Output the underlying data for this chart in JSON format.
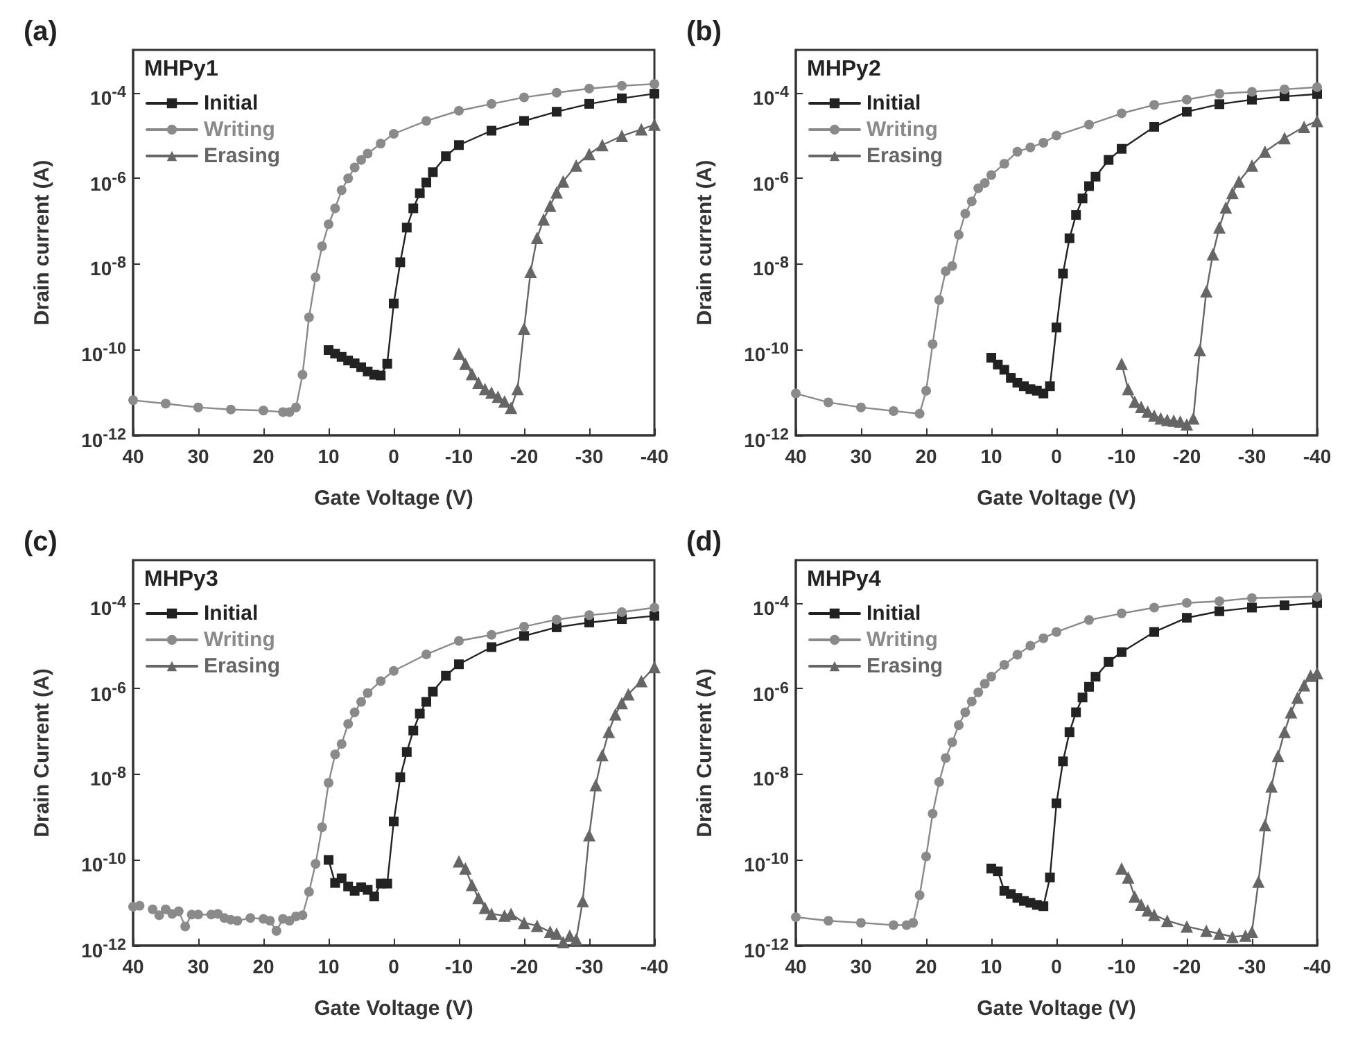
{
  "chart_data": [
    {
      "type": "line",
      "title": "(a)",
      "legend_title": "MHPy1",
      "xlabel": "Gate Voltage (V)",
      "ylabel": "Drain current (A)",
      "xlim": [
        40,
        -40
      ],
      "xticks": [
        40,
        30,
        20,
        10,
        0,
        -10,
        -20,
        -30,
        -40
      ],
      "ylim": [
        1e-12,
        0.001
      ],
      "yticks": [
        {
          "value": 1e-12,
          "label": "10$^{-12}$"
        },
        {
          "value": 1e-10,
          "label": "10$^{-10}$"
        },
        {
          "value": 1e-08,
          "label": "10$^{-8}$"
        },
        {
          "value": 1e-06,
          "label": "10$^{-6}$"
        },
        {
          "value": 0.0001,
          "label": "10$^{-4}$"
        }
      ],
      "log": "y",
      "grid": false,
      "legend": "top left",
      "series": [
        {
          "name": "Initial",
          "color": "#222222",
          "marker": "square",
          "x": [
            10,
            9,
            8,
            7,
            6,
            5,
            4,
            3,
            2,
            1,
            0,
            -1,
            -2,
            -3,
            -4,
            -5,
            -6,
            -8,
            -10,
            -15,
            -20,
            -25,
            -30,
            -35,
            -40
          ],
          "values": [
            9.8e-11,
            8.1e-11,
            6.8e-11,
            5.6e-11,
            4.8e-11,
            3.9e-11,
            3.1e-11,
            2.6e-11,
            2.5e-11,
            4.7e-11,
            1.2e-09,
            1.1e-08,
            7.1e-08,
            2e-07,
            4.5e-07,
            8e-07,
            1.4e-06,
            3.3e-06,
            6e-06,
            1.3e-05,
            2.2e-05,
            3.6e-05,
            5.5e-05,
            7.4e-05,
            9.5e-05
          ]
        },
        {
          "name": "Writing",
          "color": "#8a8a8a",
          "marker": "circle",
          "x": [
            40,
            35,
            30,
            25,
            20,
            17,
            16,
            15,
            14,
            13,
            12,
            11,
            10,
            9,
            8,
            7,
            6,
            5,
            4,
            2,
            0,
            -5,
            -10,
            -15,
            -20,
            -25,
            -30,
            -35,
            -40
          ],
          "values": [
            6.6e-12,
            5.5e-12,
            4.5e-12,
            4e-12,
            3.8e-12,
            3.5e-12,
            3.5e-12,
            4.5e-12,
            2.6e-11,
            5.7e-10,
            4.9e-09,
            2.6e-08,
            8.5e-08,
            2e-07,
            5.3e-07,
            1e-06,
            1.8e-06,
            2.7e-06,
            3.8e-06,
            6.5e-06,
            1.1e-05,
            2.2e-05,
            3.8e-05,
            5.5e-05,
            7.8e-05,
            0.0001,
            0.000125,
            0.000145,
            0.00016
          ]
        },
        {
          "name": "Erasing",
          "color": "#666666",
          "marker": "triangle",
          "x": [
            -10,
            -11,
            -12,
            -13,
            -14,
            -15,
            -16,
            -17,
            -18,
            -19,
            -20,
            -21,
            -22,
            -23,
            -24,
            -25,
            -26,
            -28,
            -30,
            -32,
            -35,
            -38,
            -40
          ],
          "values": [
            8.1e-11,
            4.7e-11,
            2.7e-11,
            1.7e-11,
            1.2e-11,
            1e-11,
            8e-12,
            6.2e-12,
            4.4e-12,
            1.2e-11,
            3.1e-10,
            6.6e-09,
            4.1e-08,
            1.1e-07,
            2.3e-07,
            4.7e-07,
            8.5e-07,
            2e-06,
            3.7e-06,
            6e-06,
            9.8e-06,
            1.4e-05,
            1.8e-05
          ]
        }
      ]
    },
    {
      "type": "line",
      "title": "(b)",
      "legend_title": "MHPy2",
      "xlabel": "Gate Voltage (V)",
      "ylabel": "Drain current (A)",
      "xlim": [
        40,
        -40
      ],
      "xticks": [
        40,
        30,
        20,
        10,
        0,
        -10,
        -20,
        -30,
        -40
      ],
      "ylim": [
        1e-12,
        0.001
      ],
      "yticks": [
        {
          "value": 1e-12,
          "label": "10$^{-12}$"
        },
        {
          "value": 1e-10,
          "label": "10$^{-10}$"
        },
        {
          "value": 1e-08,
          "label": "10$^{-8}$"
        },
        {
          "value": 1e-06,
          "label": "10$^{-6}$"
        },
        {
          "value": 0.0001,
          "label": "10$^{-4}$"
        }
      ],
      "log": "y",
      "grid": false,
      "legend": "top left",
      "series": [
        {
          "name": "Initial",
          "color": "#222222",
          "marker": "square",
          "x": [
            10,
            9,
            8,
            7,
            6,
            5,
            4,
            3,
            2,
            1,
            0,
            -1,
            -2,
            -3,
            -4,
            -5,
            -6,
            -8,
            -10,
            -15,
            -20,
            -25,
            -30,
            -35,
            -40
          ],
          "values": [
            6.5e-11,
            4.5e-11,
            3.4e-11,
            2.2e-11,
            1.7e-11,
            1.4e-11,
            1.2e-11,
            1.1e-11,
            9.5e-12,
            1.4e-11,
            3.3e-10,
            6e-09,
            4e-08,
            1.4e-07,
            3.4e-07,
            6.6e-07,
            1.1e-06,
            2.7e-06,
            4.9e-06,
            1.6e-05,
            3.6e-05,
            5.4e-05,
            6.9e-05,
            8.2e-05,
            9.3e-05
          ]
        },
        {
          "name": "Writing",
          "color": "#8a8a8a",
          "marker": "circle",
          "x": [
            40,
            35,
            30,
            25,
            21,
            20,
            19,
            18,
            17,
            16,
            15,
            14,
            13,
            12,
            11,
            10,
            8,
            6,
            4,
            2,
            0,
            -5,
            -10,
            -15,
            -20,
            -25,
            -30,
            -35,
            -40
          ],
          "values": [
            9.5e-12,
            5.9e-12,
            4.5e-12,
            3.7e-12,
            3.2e-12,
            1.1e-11,
            1.35e-10,
            1.45e-09,
            6.8e-09,
            9e-09,
            4.8e-08,
            1.5e-07,
            2.9e-07,
            5.9e-07,
            7.8e-07,
            1.2e-06,
            2.2e-06,
            4.2e-06,
            5.3e-06,
            6.8e-06,
            1e-05,
            1.8e-05,
            3.3e-05,
            5.2e-05,
            6.9e-05,
            9.5e-05,
            0.000105,
            0.00012,
            0.000135
          ]
        },
        {
          "name": "Erasing",
          "color": "#666666",
          "marker": "triangle",
          "x": [
            -10,
            -11,
            -12,
            -13,
            -14,
            -15,
            -16,
            -17,
            -18,
            -19,
            -20,
            -21,
            -22,
            -23,
            -24,
            -25,
            -26,
            -27,
            -28,
            -30,
            -32,
            -35,
            -38,
            -40
          ],
          "values": [
            4.7e-11,
            1.2e-11,
            6.1e-12,
            4.6e-12,
            3.6e-12,
            2.9e-12,
            2.5e-12,
            2.3e-12,
            2.2e-12,
            2.1e-12,
            1.8e-12,
            2.5e-12,
            9.8e-11,
            2.3e-09,
            1.7e-08,
            7.2e-08,
            2.1e-07,
            4.6e-07,
            8.5e-07,
            2e-06,
            4.2e-06,
            8.7e-06,
            1.6e-05,
            2.2e-05
          ]
        }
      ]
    },
    {
      "type": "line",
      "title": "(c)",
      "legend_title": "MHPy3",
      "xlabel": "Gate Voltage (V)",
      "ylabel": "Drain Current (A)",
      "xlim": [
        40,
        -40
      ],
      "xticks": [
        40,
        30,
        20,
        10,
        0,
        -10,
        -20,
        -30,
        -40
      ],
      "ylim": [
        1e-12,
        0.001
      ],
      "yticks": [
        {
          "value": 1e-12,
          "label": "10$^{-12}$"
        },
        {
          "value": 1e-10,
          "label": "10$^{-10}$"
        },
        {
          "value": 1e-08,
          "label": "10$^{-8}$"
        },
        {
          "value": 1e-06,
          "label": "10$^{-6}$"
        },
        {
          "value": 0.0001,
          "label": "10$^{-4}$"
        }
      ],
      "log": "y",
      "grid": false,
      "legend": "top left",
      "series": [
        {
          "name": "Initial",
          "color": "#222222",
          "marker": "square",
          "x": [
            10,
            9,
            8,
            7,
            6,
            5,
            4,
            3,
            2,
            1,
            0,
            -1,
            -2,
            -3,
            -4,
            -5,
            -6,
            -8,
            -10,
            -15,
            -20,
            -25,
            -30,
            -35,
            -40
          ],
          "values": [
            1e-10,
            2.9e-11,
            3.7e-11,
            2.4e-11,
            1.9e-11,
            2.3e-11,
            2e-11,
            1.4e-11,
            2.8e-11,
            2.8e-11,
            7.9e-10,
            8.5e-09,
            3.3e-08,
            1.05e-07,
            2.6e-07,
            4.9e-07,
            8.5e-07,
            2e-06,
            3.7e-06,
            9.3e-06,
            1.7e-05,
            2.7e-05,
            3.5e-05,
            4.2e-05,
            5e-05
          ]
        },
        {
          "name": "Writing",
          "color": "#8a8a8a",
          "marker": "circle",
          "x": [
            40,
            39,
            38,
            37,
            36,
            35,
            34,
            33,
            32,
            31,
            30,
            28,
            27,
            26,
            25,
            24,
            22,
            20,
            19,
            18,
            17,
            16,
            15,
            14,
            13,
            12,
            11,
            10,
            9,
            8,
            7,
            6,
            5,
            4,
            2,
            0,
            -5,
            -10,
            -15,
            -20,
            -25,
            -30,
            -35,
            -40
          ],
          "values": [
            8.1e-12,
            8.5e-12,
            null,
            7e-12,
            5.1e-12,
            7e-12,
            5.5e-12,
            6.3e-12,
            2.8e-12,
            5.3e-12,
            5.3e-12,
            5.3e-12,
            5.5e-12,
            4.4e-12,
            4e-12,
            3.8e-12,
            4.4e-12,
            4.2e-12,
            3.8e-12,
            2.2e-12,
            4.2e-12,
            3.8e-12,
            4.8e-12,
            5.1e-12,
            1.8e-11,
            8.1e-11,
            5.8e-10,
            6.3e-09,
            2.9e-08,
            5.1e-08,
            1.5e-07,
            2.8e-07,
            4.9e-07,
            7.9e-07,
            1.5e-06,
            2.6e-06,
            6.3e-06,
            1.3e-05,
            1.8e-05,
            2.8e-05,
            4.1e-05,
            5.2e-05,
            6.1e-05,
            7.8e-05
          ]
        },
        {
          "name": "Erasing",
          "color": "#666666",
          "marker": "triangle",
          "x": [
            -10,
            -11,
            -12,
            -13,
            -14,
            -15,
            -17,
            -18,
            -20,
            -22,
            -24,
            -25,
            -26,
            -27,
            -28,
            -29,
            -30,
            -31,
            -32,
            -33,
            -34,
            -35,
            -36,
            -38,
            -40
          ],
          "values": [
            9.3e-11,
            6.3e-11,
            2.6e-11,
            1.3e-11,
            7.6e-12,
            5.5e-12,
            5e-12,
            5.5e-12,
            3.4e-12,
            2.9e-12,
            2.1e-12,
            1.9e-12,
            1.2e-12,
            1.7e-12,
            1.4e-12,
            1.1e-11,
            3.8e-10,
            5.6e-09,
            2.8e-08,
            9.8e-08,
            2.5e-07,
            4.6e-07,
            7.4e-07,
            1.5e-06,
            3.2e-06
          ]
        }
      ]
    },
    {
      "type": "line",
      "title": "(d)",
      "legend_title": "MHPy4",
      "xlabel": "Gate Voltage (V)",
      "ylabel": "Drain Current (A)",
      "xlim": [
        40,
        -40
      ],
      "xticks": [
        40,
        30,
        20,
        10,
        0,
        -10,
        -20,
        -30,
        -40
      ],
      "ylim": [
        1e-12,
        0.001
      ],
      "yticks": [
        {
          "value": 1e-12,
          "label": "10$^{-12}$"
        },
        {
          "value": 1e-10,
          "label": "10$^{-10}$"
        },
        {
          "value": 1e-08,
          "label": "10$^{-8}$"
        },
        {
          "value": 1e-06,
          "label": "10$^{-6}$"
        },
        {
          "value": 0.0001,
          "label": "10$^{-4}$"
        }
      ],
      "log": "y",
      "grid": false,
      "legend": "top left",
      "series": [
        {
          "name": "Initial",
          "color": "#222222",
          "marker": "square",
          "x": [
            10,
            9,
            8,
            7,
            6,
            5,
            4,
            3,
            2,
            1,
            0,
            -1,
            -2,
            -3,
            -4,
            -5,
            -6,
            -8,
            -10,
            -15,
            -20,
            -25,
            -30,
            -35,
            -40
          ],
          "values": [
            6.3e-11,
            5.4e-11,
            1.9e-11,
            1.6e-11,
            1.3e-11,
            1.1e-11,
            1e-11,
            8.9e-12,
            8.3e-12,
            3.9e-11,
            2.1e-09,
            2e-08,
            9.6e-08,
            2.8e-07,
            6.2e-07,
            1.1e-06,
            1.9e-06,
            4.2e-06,
            7.1e-06,
            2.1e-05,
            4.5e-05,
            6.4e-05,
            7.8e-05,
            8.8e-05,
            0.0001
          ]
        },
        {
          "name": "Writing",
          "color": "#8a8a8a",
          "marker": "circle",
          "x": [
            40,
            35,
            30,
            25,
            23,
            22,
            21,
            20,
            19,
            18,
            17,
            16,
            15,
            14,
            13,
            12,
            11,
            10,
            8,
            6,
            4,
            2,
            0,
            -5,
            -10,
            -15,
            -20,
            -25,
            -30,
            -40
          ],
          "values": [
            4.6e-12,
            3.8e-12,
            3.4e-12,
            3e-12,
            3e-12,
            3.4e-12,
            1.5e-11,
            1.2e-10,
            1.2e-09,
            6.6e-09,
            2.4e-08,
            5.6e-08,
            1.4e-07,
            2.8e-07,
            5e-07,
            8.2e-07,
            1.3e-06,
            1.9e-06,
            3.6e-06,
            6.2e-06,
            1e-05,
            1.5e-05,
            2.1e-05,
            4e-05,
            5.7e-05,
            7.8e-05,
            0.0001,
            0.00011,
            0.00013,
            0.00014
          ]
        },
        {
          "name": "Erasing",
          "color": "#666666",
          "marker": "triangle",
          "x": [
            -10,
            -11,
            -12,
            -13,
            -14,
            -15,
            -17,
            -20,
            -23,
            -25,
            -27,
            -29,
            -30,
            -31,
            -32,
            -33,
            -34,
            -35,
            -36,
            -37,
            -38,
            -39,
            -40
          ],
          "values": [
            6.3e-11,
            3.9e-11,
            1.4e-11,
            9e-12,
            6.6e-12,
            5.2e-12,
            3.8e-12,
            2.8e-12,
            2.2e-12,
            1.9e-12,
            1.6e-12,
            1.7e-12,
            2.1e-12,
            3.1e-11,
            6.5e-10,
            5.2e-09,
            2.7e-08,
            9.8e-08,
            2.8e-07,
            6.2e-07,
            1.2e-06,
            2e-06,
            2.3e-06
          ]
        }
      ]
    }
  ]
}
